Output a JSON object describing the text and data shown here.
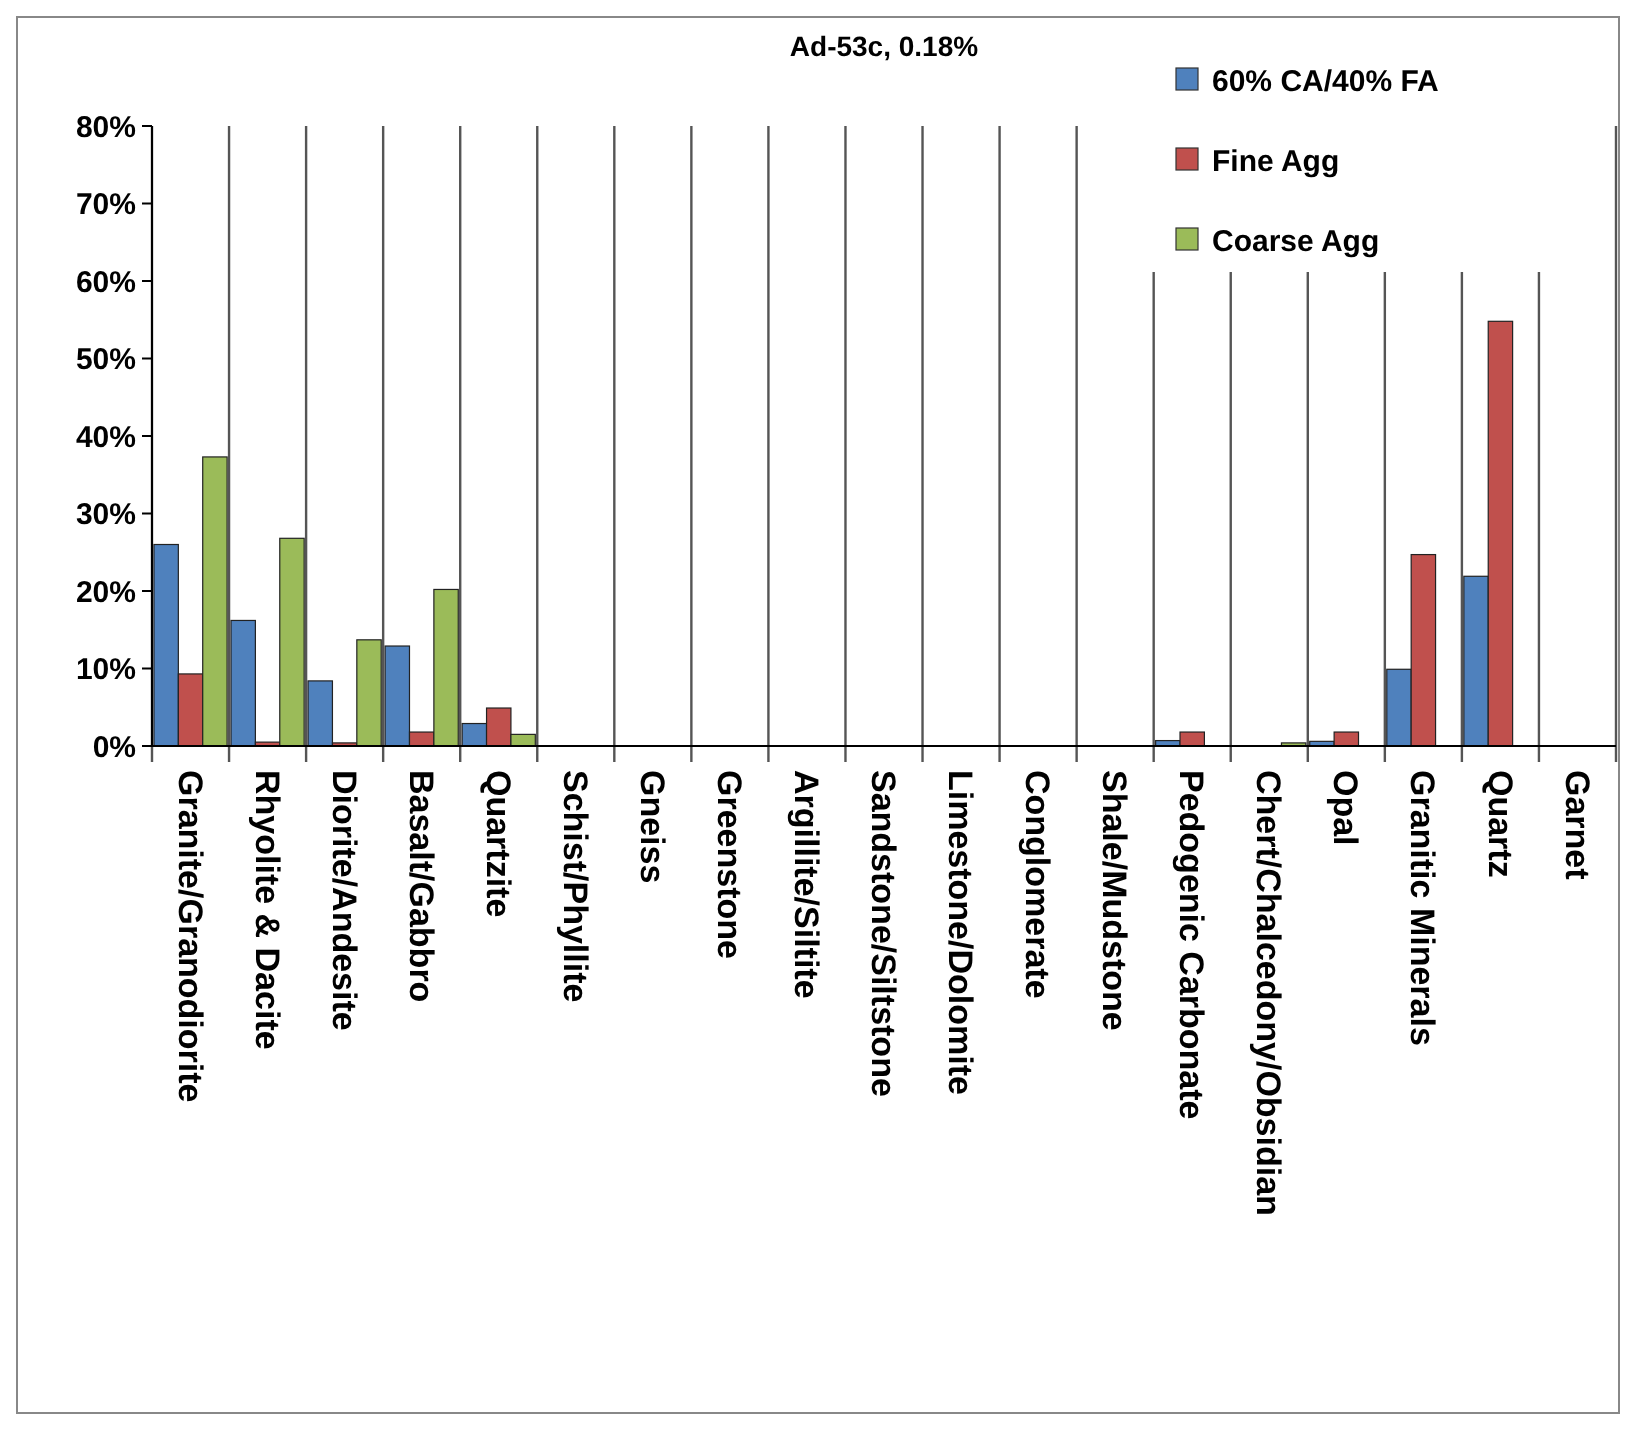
{
  "chart_data": {
    "type": "bar",
    "title": "Ad-53c, 0.18%",
    "categories": [
      "Granite/Granodiorite",
      "Rhyolite & Dacite",
      "Diorite/Andesite",
      "Basalt/Gabbro",
      "Quartzite",
      "Schist/Phyllite",
      "Gneiss",
      "Greenstone",
      "Argillite/Siltite",
      "Sandstone/Siltstone",
      "Limestone/Dolomite",
      "Conglomerate",
      "Shale/Mudstone",
      "Pedogenic Carbonate",
      "Chert/Chalcedony/Obsidian",
      "Opal",
      "Granitic Minerals",
      "Quartz",
      "Garnet"
    ],
    "series": [
      {
        "name": "60% CA/40% FA",
        "color": "#4f81bd",
        "values": [
          26,
          16.2,
          8.4,
          12.9,
          2.9,
          0,
          0,
          0,
          0,
          0,
          0,
          0,
          0,
          0.7,
          null,
          0.6,
          9.9,
          21.9,
          null
        ]
      },
      {
        "name": "Fine Agg",
        "color": "#c0504d",
        "values": [
          9.3,
          0.5,
          0.4,
          1.8,
          4.9,
          0,
          0,
          0,
          0,
          0,
          0,
          0,
          0,
          1.8,
          0,
          1.8,
          24.7,
          54.8,
          null
        ]
      },
      {
        "name": "Coarse Agg",
        "color": "#9bbb59",
        "values": [
          37.3,
          26.8,
          13.7,
          20.2,
          1.5,
          0,
          0,
          0,
          0,
          0,
          0,
          0,
          0,
          null,
          0.4,
          0,
          0,
          0,
          0
        ]
      }
    ],
    "ylim": [
      0,
      80
    ],
    "yticks": [
      {
        "value": 0,
        "label": "0%"
      },
      {
        "value": 10,
        "label": "10%"
      },
      {
        "value": 20,
        "label": "20%"
      },
      {
        "value": 30,
        "label": "30%"
      },
      {
        "value": 40,
        "label": "40%"
      },
      {
        "value": 50,
        "label": "50%"
      },
      {
        "value": 60,
        "label": "60%"
      },
      {
        "value": 70,
        "label": "70%"
      },
      {
        "value": 80,
        "label": "80%"
      }
    ],
    "grid": "x",
    "legend": "top right"
  }
}
